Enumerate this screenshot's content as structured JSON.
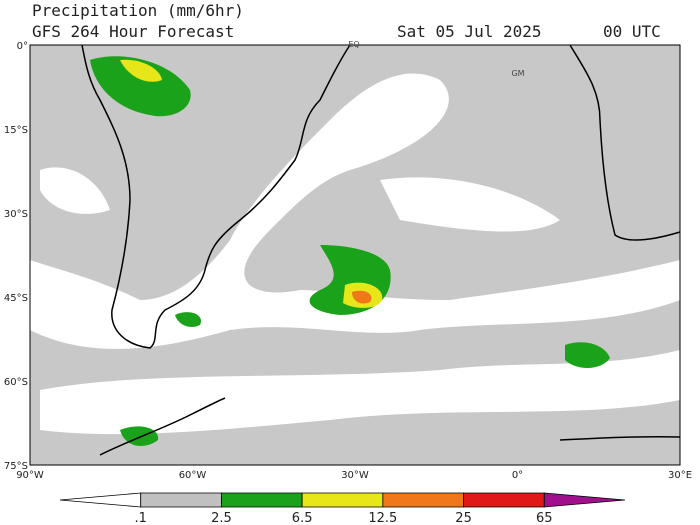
{
  "header": {
    "title": "Precipitation (mm/6hr)",
    "subtitle": "GFS 264 Hour Forecast",
    "date": "Sat 05 Jul 2025",
    "time": "00 UTC"
  },
  "map": {
    "lat_labels": [
      "0°",
      "15°S",
      "30°S",
      "45°S",
      "60°S",
      "75°S"
    ],
    "lon_labels": [
      "90°W",
      "60°W",
      "30°W",
      "0°",
      "30°E"
    ],
    "markers": [
      "EQ",
      "GM"
    ]
  },
  "colorbar": {
    "colors": [
      "#ffffff",
      "#c0c0c0",
      "#1aa31a",
      "#e6e619",
      "#f07818",
      "#e01818",
      "#a0108c"
    ],
    "labels": [
      ".1",
      "2.5",
      "6.5",
      "12.5",
      "25",
      "65"
    ]
  }
}
